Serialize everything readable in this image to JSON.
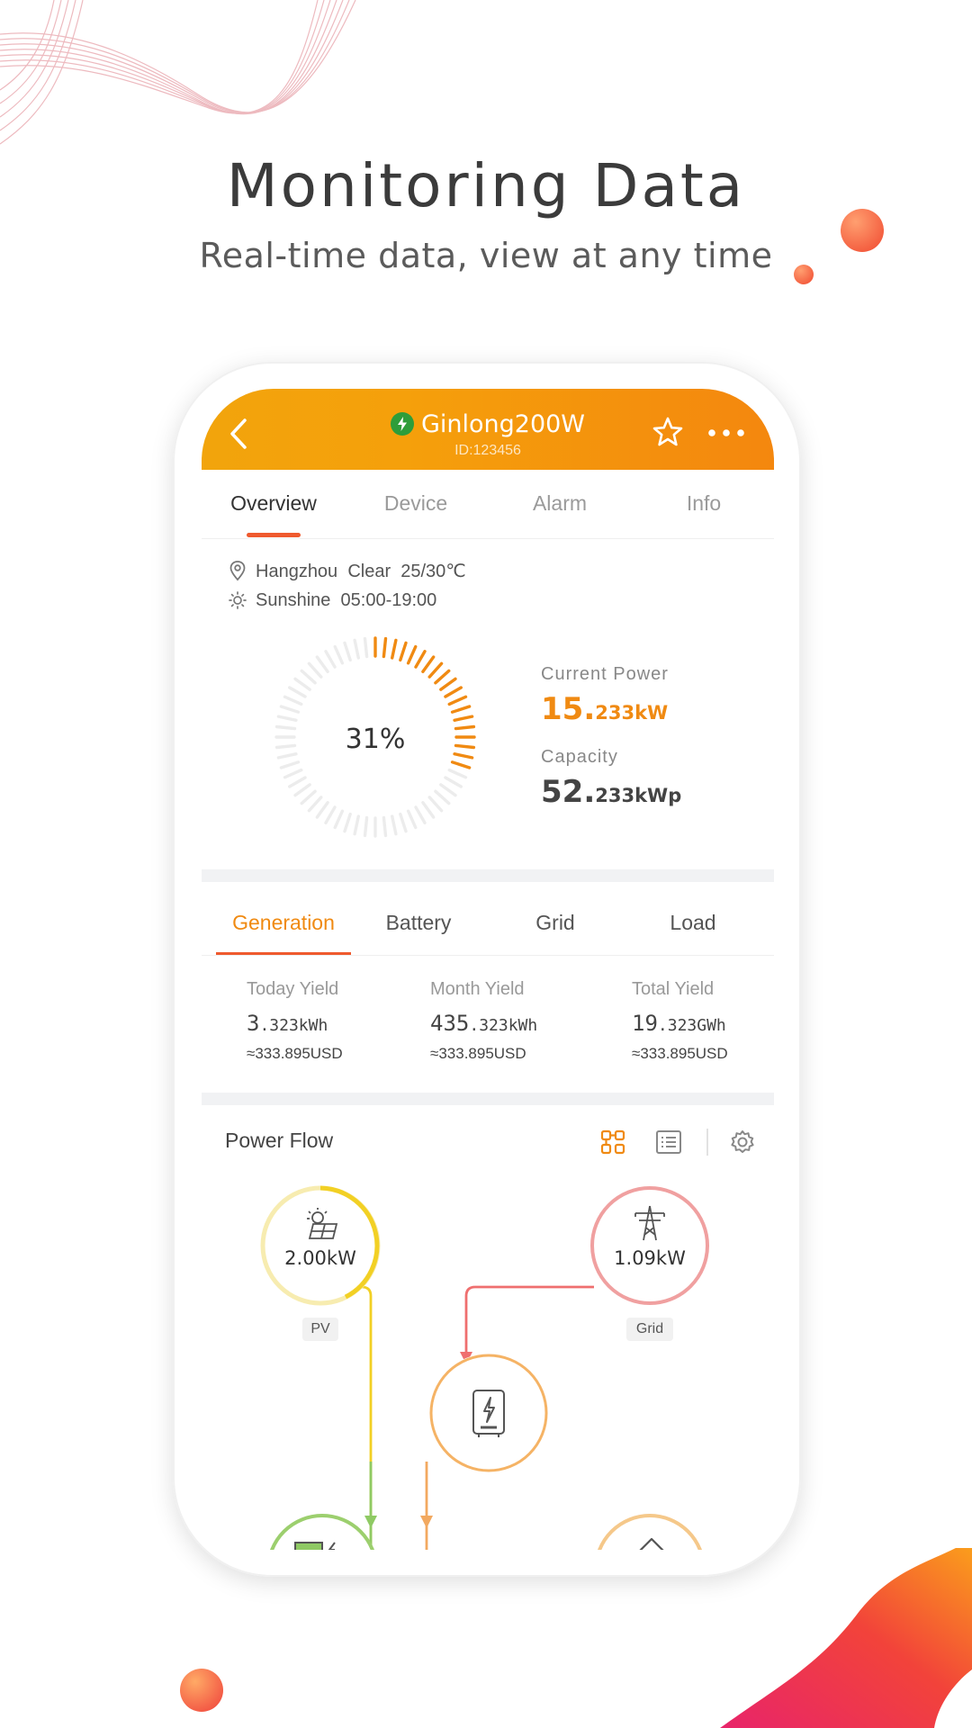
{
  "promo": {
    "title": "Monitoring Data",
    "subtitle": "Real-time data, view at any time"
  },
  "header": {
    "title": "Ginlong200W",
    "id": "ID:123456",
    "status_color": "#2e9d3a"
  },
  "tabs": [
    "Overview",
    "Device",
    "Alarm",
    "Info"
  ],
  "weather": {
    "location": "Hangzhou",
    "condition": "Clear",
    "temp": "25/30℃",
    "sunshine_label": "Sunshine",
    "sunshine_time": "05:00-19:00"
  },
  "gauge": {
    "percent_label": "31%",
    "fraction": 0.31,
    "accent": "#f08a12"
  },
  "current_power": {
    "label": "Current Power",
    "int": "15.",
    "dec": "233kW"
  },
  "capacity": {
    "label": "Capacity",
    "int": "52.",
    "dec": "233kWp"
  },
  "gen_tabs": [
    "Generation",
    "Battery",
    "Grid",
    "Load"
  ],
  "yields": [
    {
      "label": "Today Yield",
      "int": "3",
      "dec": ".323kWh",
      "usd": "≈333.895USD"
    },
    {
      "label": "Month Yield",
      "int": "435",
      "dec": ".323kWh",
      "usd": "≈333.895USD"
    },
    {
      "label": "Total Yield",
      "int": "19",
      "dec": ".323GWh",
      "usd": "≈333.895USD"
    }
  ],
  "power_flow": {
    "title": "Power Flow",
    "pv": {
      "value": "2.00kW",
      "label": "PV",
      "color": "#f2d024"
    },
    "grid": {
      "value": "1.09kW",
      "label": "Grid",
      "color": "#f0a0a0"
    },
    "inverter_color": "#f5b365",
    "battery_color": "#9ccf6e",
    "load_color": "#f5c88a"
  }
}
